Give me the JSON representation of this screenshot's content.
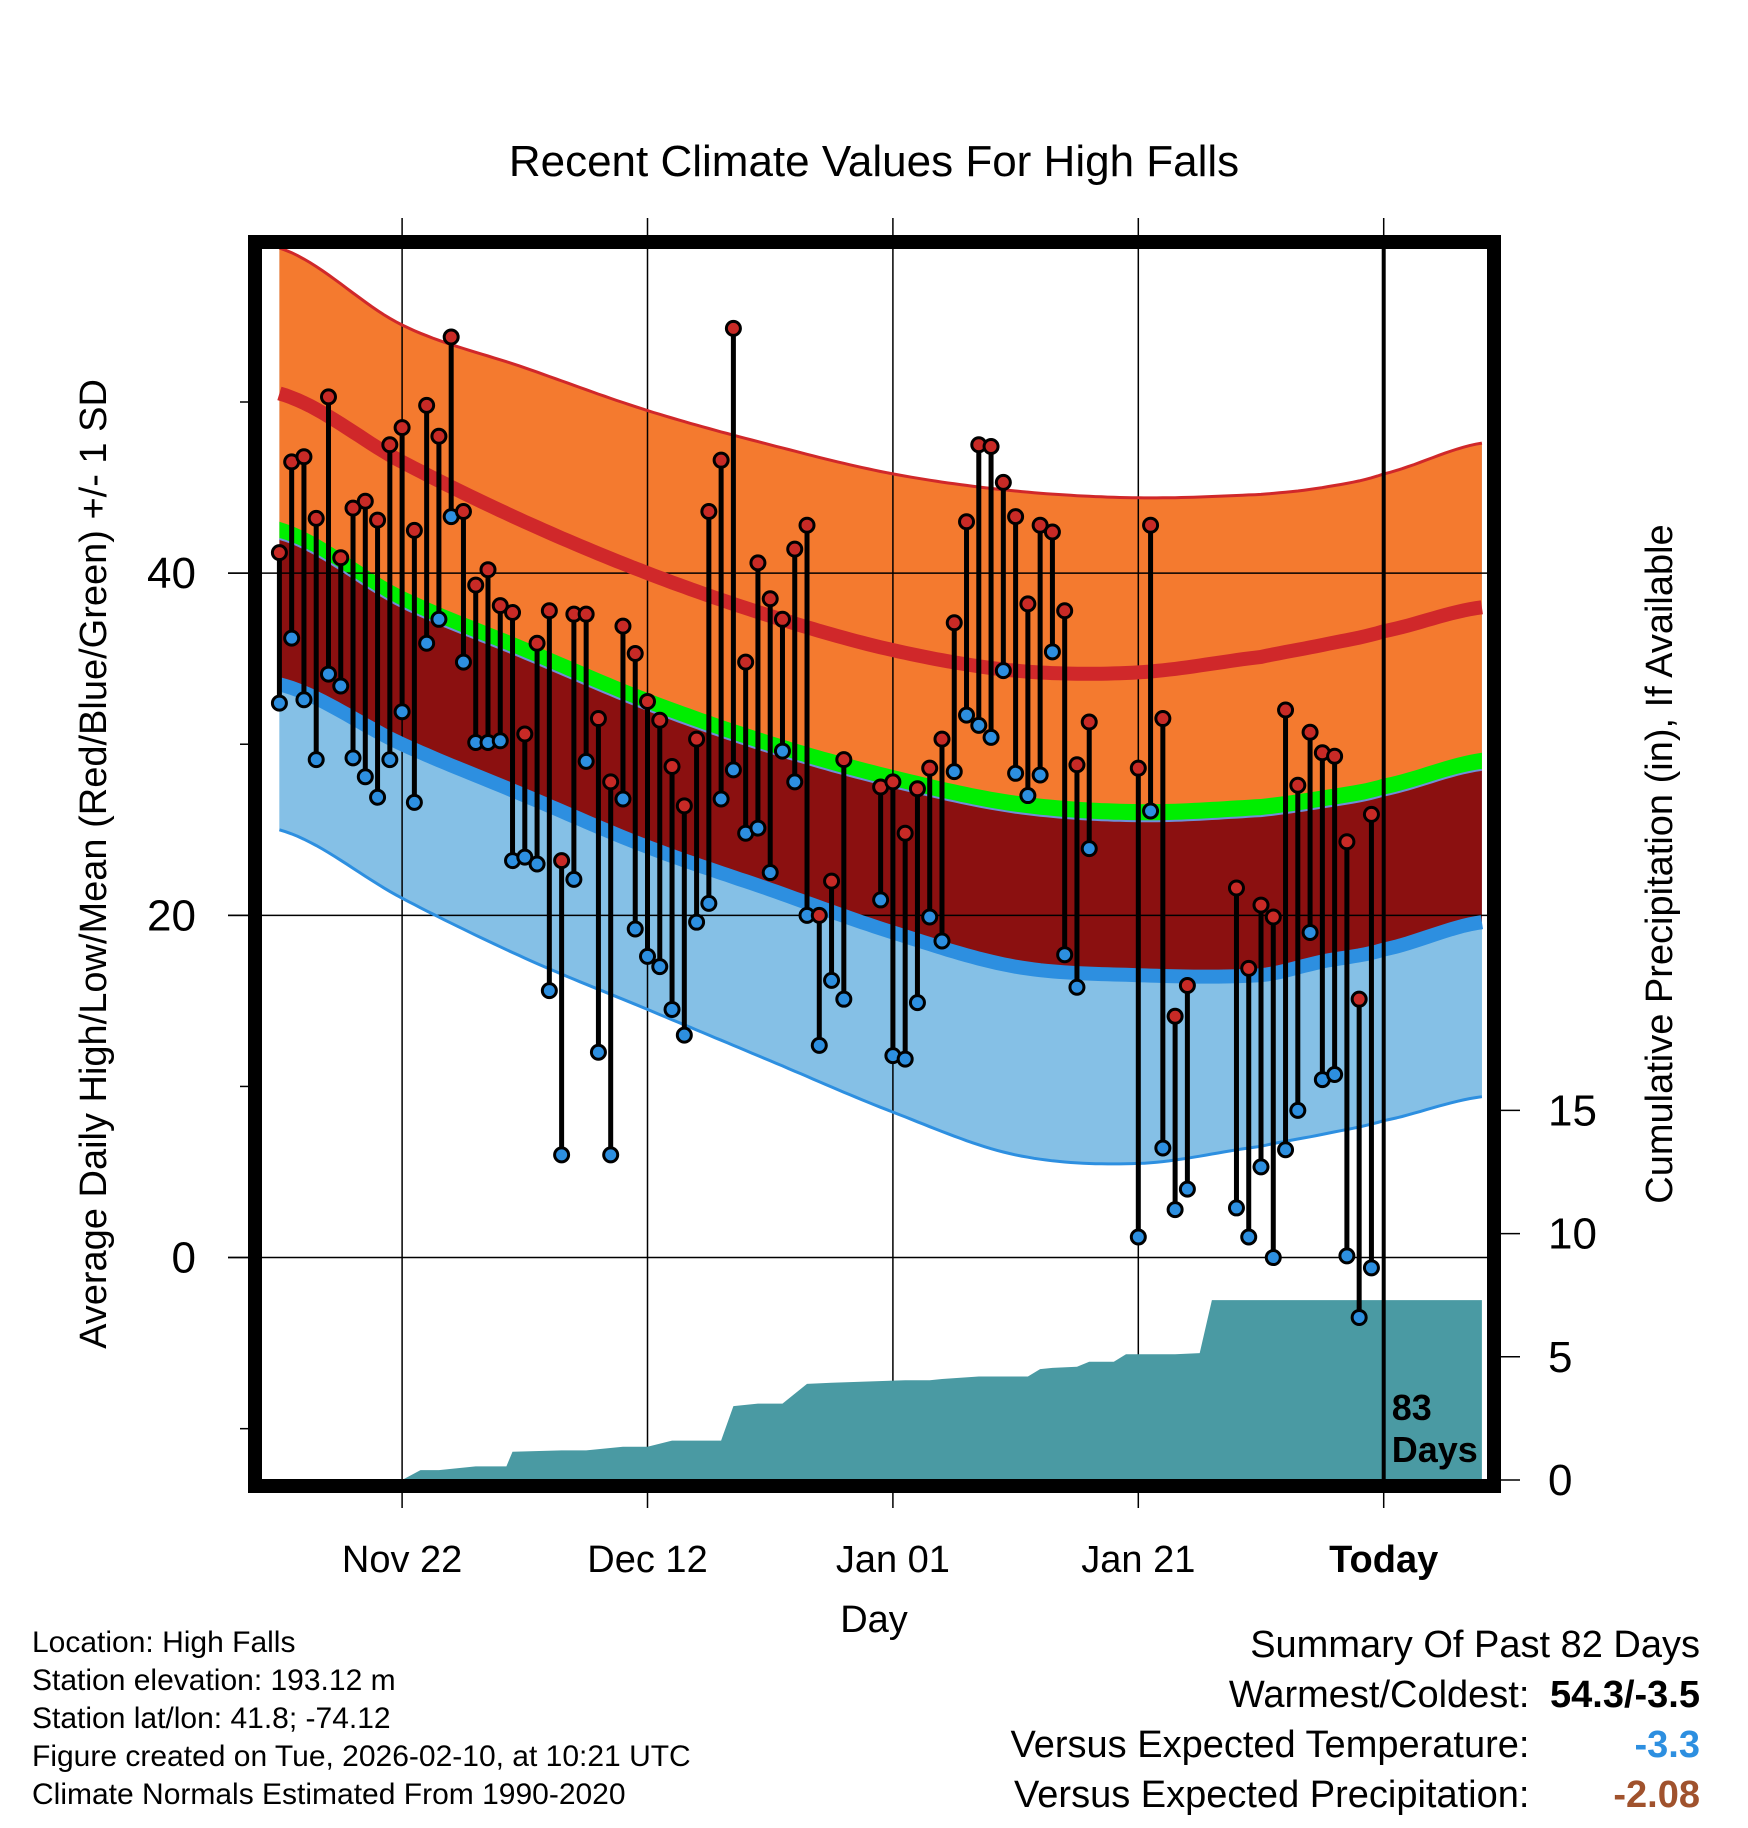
{
  "chart_data": {
    "type": "climate-range",
    "title": "Recent Climate Values For High Falls",
    "xlabel": "Day",
    "ylabel": "Average Daily High/Low/Mean (Red/Blue/Green) +/- 1 SD",
    "y2label": "Cumulative Precipitation (in), If Available",
    "ylim": [
      -13,
      59
    ],
    "yticks": [
      0,
      20,
      40
    ],
    "y2lim": [
      0,
      50
    ],
    "y2ticks": [
      0,
      5,
      10,
      15
    ],
    "xlim": [
      -11.5,
      88.5
    ],
    "xticks": [
      {
        "day": 0,
        "label": "Nov 22"
      },
      {
        "day": 20,
        "label": "Dec 12"
      },
      {
        "day": 40,
        "label": "Jan 01"
      },
      {
        "day": 60,
        "label": "Jan 21"
      },
      {
        "day": 80,
        "label": "Today"
      }
    ],
    "today_day": 80,
    "days_label": [
      "83",
      "Days"
    ],
    "normals_day": [
      -10,
      0,
      10,
      20,
      30,
      40,
      50,
      60,
      70,
      75,
      80,
      88
    ],
    "normal_high": [
      50.5,
      46.5,
      43.0,
      40.0,
      37.5,
      35.5,
      34.3,
      34.2,
      35.1,
      35.8,
      36.6,
      38.0
    ],
    "normal_high_upper": [
      59.0,
      54.5,
      52.0,
      49.5,
      47.5,
      45.8,
      44.8,
      44.4,
      44.6,
      45.0,
      45.8,
      47.6
    ],
    "normal_mean": [
      42.0,
      38.0,
      35.0,
      32.0,
      29.5,
      27.5,
      26.0,
      25.5,
      25.8,
      26.3,
      27.0,
      28.5
    ],
    "normal_mean_upper": [
      43.0,
      39.0,
      36.0,
      33.0,
      30.5,
      28.5,
      27.0,
      26.5,
      26.8,
      27.3,
      28.0,
      29.5
    ],
    "normal_low": [
      33.5,
      30.0,
      27.0,
      24.0,
      21.5,
      19.0,
      17.0,
      16.5,
      16.5,
      17.3,
      18.0,
      19.6
    ],
    "normal_low_lower": [
      25.0,
      21.0,
      17.5,
      14.5,
      11.5,
      8.5,
      6.0,
      5.5,
      6.5,
      7.2,
      8.0,
      9.4
    ],
    "series": [
      {
        "name": "Daily high",
        "color": "#c82a26"
      },
      {
        "name": "Daily low",
        "color": "#2d8fe0"
      }
    ],
    "daily_start_day": -10,
    "daily_high": [
      41.2,
      46.5,
      46.8,
      43.2,
      50.3,
      40.9,
      43.8,
      44.2,
      43.1,
      47.5,
      48.5,
      42.5,
      49.8,
      48.0,
      53.8,
      43.6,
      39.3,
      40.2,
      38.1,
      37.7,
      30.6,
      35.9,
      37.8,
      23.2,
      37.6,
      37.6,
      31.5,
      27.8,
      36.9,
      35.3,
      32.5,
      31.4,
      28.7,
      26.4,
      30.3,
      43.6,
      46.6,
      54.3,
      34.8,
      40.6,
      38.5,
      37.3,
      41.4,
      42.8,
      20.0,
      22.0,
      29.1,
      null,
      null,
      27.5,
      27.8,
      24.8,
      27.4,
      28.6,
      30.3,
      37.1,
      43.0,
      47.5,
      47.4,
      45.3,
      43.3,
      38.2,
      42.8,
      42.4,
      37.8,
      28.8,
      31.3,
      null,
      null,
      null,
      28.6,
      42.8,
      31.5,
      14.1,
      15.9,
      null,
      null,
      null,
      21.6,
      16.9,
      20.6,
      19.9,
      32.0,
      27.6,
      30.7,
      29.5,
      29.3,
      24.3,
      15.1,
      25.9
    ],
    "daily_low": [
      32.4,
      36.2,
      32.6,
      29.1,
      34.1,
      33.4,
      29.2,
      28.1,
      26.9,
      29.1,
      31.9,
      26.6,
      35.9,
      37.3,
      43.3,
      34.8,
      30.1,
      30.1,
      30.2,
      23.2,
      23.4,
      23.0,
      15.6,
      6.0,
      22.1,
      29.0,
      12.0,
      6.0,
      26.8,
      19.2,
      17.6,
      17.0,
      14.5,
      13.0,
      19.6,
      20.7,
      26.8,
      28.5,
      24.8,
      25.1,
      22.5,
      29.6,
      27.8,
      20.0,
      12.4,
      16.2,
      15.1,
      null,
      null,
      20.9,
      11.8,
      11.6,
      14.9,
      19.9,
      18.5,
      28.4,
      31.7,
      31.1,
      30.4,
      34.3,
      28.3,
      27.0,
      28.2,
      35.4,
      17.7,
      15.8,
      23.9,
      null,
      null,
      null,
      1.2,
      26.1,
      6.4,
      2.8,
      4.0,
      null,
      null,
      null,
      2.9,
      1.2,
      5.3,
      0.0,
      6.3,
      8.6,
      19.0,
      10.4,
      10.7,
      0.1,
      -3.5,
      -0.6
    ],
    "precip_day": [
      -10,
      -7,
      0,
      1.5,
      3,
      6,
      8.5,
      9,
      13,
      15,
      18,
      20,
      22,
      23,
      26,
      27,
      29,
      31,
      33,
      35,
      41,
      43,
      44,
      47,
      51,
      52,
      53,
      55,
      56,
      58,
      59,
      63,
      65,
      66,
      88
    ],
    "precip_cum": [
      0.0,
      0.0,
      0.0,
      0.4,
      0.4,
      0.55,
      0.55,
      1.15,
      1.2,
      1.2,
      1.35,
      1.35,
      1.6,
      1.6,
      1.6,
      3.0,
      3.1,
      3.1,
      3.9,
      3.95,
      4.05,
      4.05,
      4.1,
      4.2,
      4.2,
      4.5,
      4.55,
      4.6,
      4.8,
      4.8,
      5.1,
      5.1,
      5.15,
      7.3,
      7.3
    ]
  },
  "footer": {
    "location": "Location: High Falls",
    "elevation": "Station elevation: 193.12 m",
    "latlon": "Station lat/lon: 41.8; -74.12",
    "created": "Figure created on Tue, 2026-02-10, at 10:21 UTC",
    "normals": "Climate Normals Estimated From 1990-2020"
  },
  "summary": {
    "title": "Summary Of Past 82 Days",
    "warm_cold_label": "Warmest/Coldest:",
    "warm_cold_value": "54.3/-3.5",
    "temp_label": "Versus Expected Temperature:",
    "temp_value": "-3.3",
    "temp_color": "#2d8fe0",
    "precip_label": "Versus Expected Precipitation:",
    "precip_value": "-2.08",
    "precip_color": "#a0522d"
  },
  "colors": {
    "high_band": "#f47a2f",
    "high_line": "#d0282a",
    "mean_band": "#00ee00",
    "mean_gap": "#8b1010",
    "low_band": "#85c0e6",
    "low_line": "#2d8fe0",
    "precip_fill": "#4a9aa3"
  }
}
